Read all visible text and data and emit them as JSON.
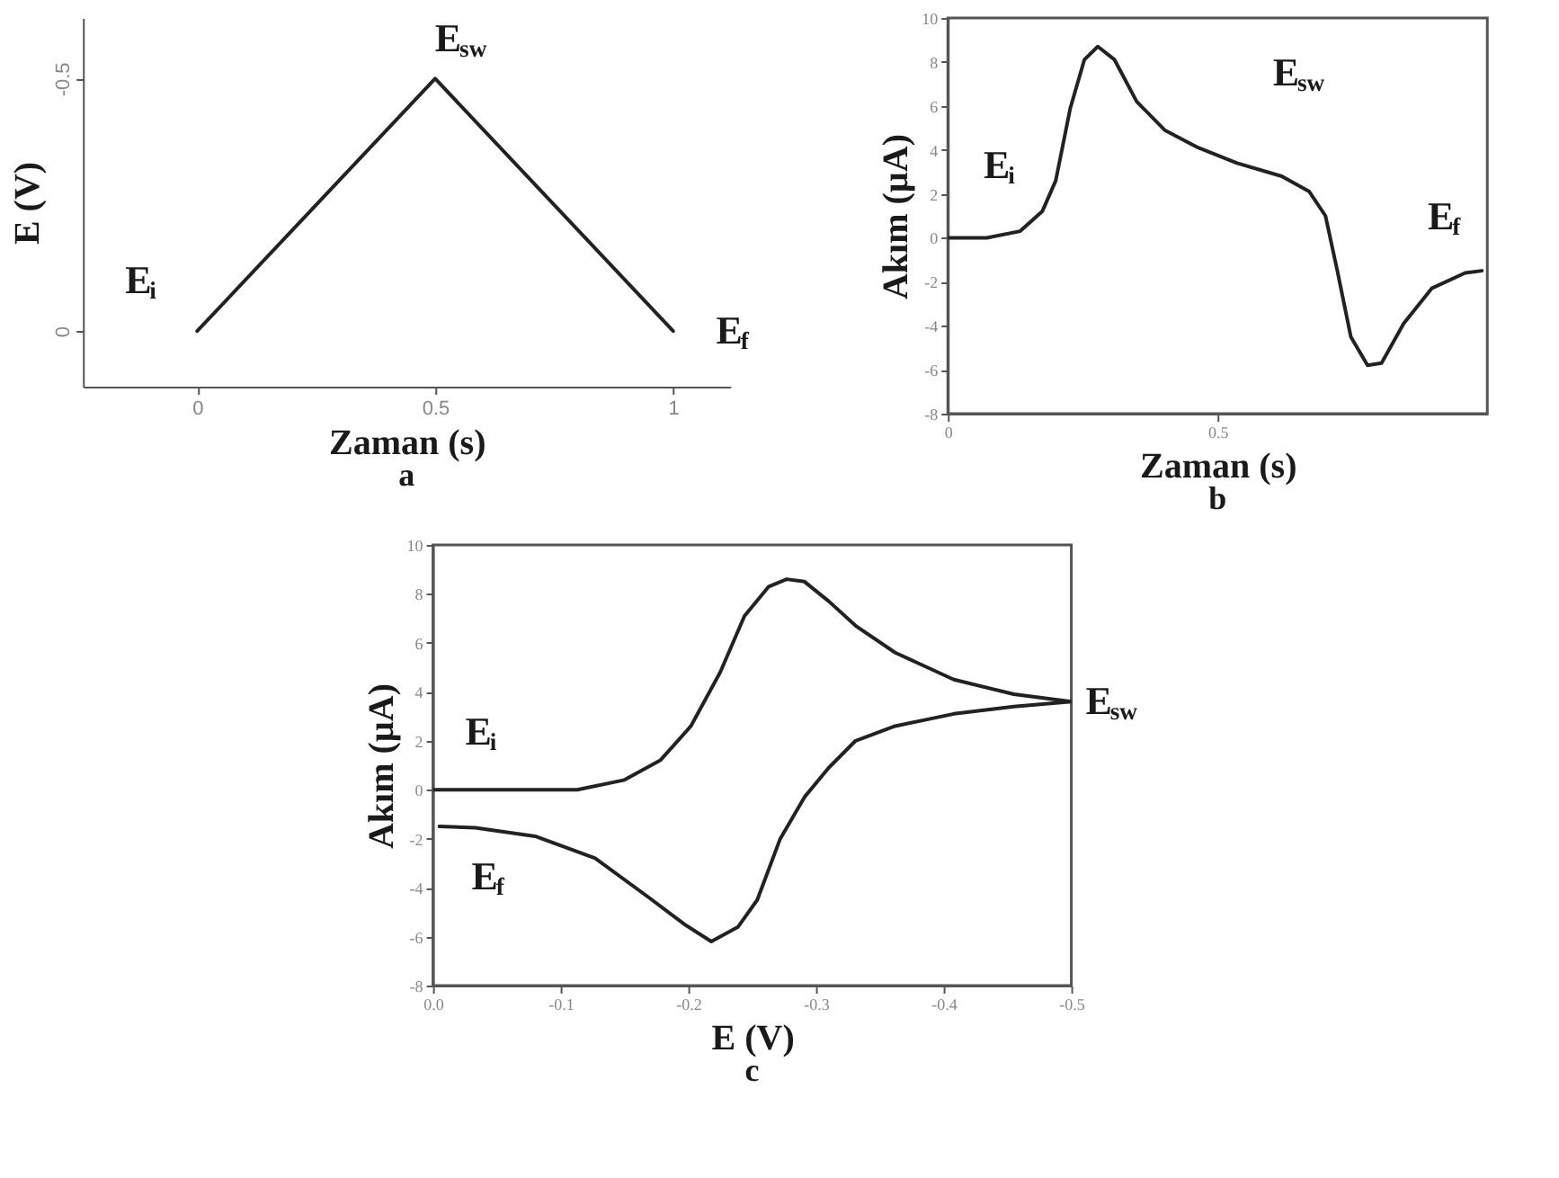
{
  "chart_data": [
    {
      "type": "line",
      "title": "a",
      "xlabel": "Zaman (s)",
      "ylabel": "E (V)",
      "xlim": [
        -0.24,
        1.12
      ],
      "ylim": [
        0.11,
        -0.62
      ],
      "xticks": [
        0,
        0.5,
        1
      ],
      "yticks": [
        0,
        -0.5
      ],
      "series": [
        {
          "color": "#222222",
          "x": [
            0,
            0.5,
            1
          ],
          "values": [
            0,
            -0.5,
            0
          ]
        }
      ],
      "annotations": [
        {
          "text": "E$_{i}$",
          "x": 0,
          "y": 0
        },
        {
          "text": "E$_{sw}$",
          "x": 0.5,
          "y": -0.5
        },
        {
          "text": "E$_{f}$",
          "x": 1,
          "y": 0
        }
      ]
    },
    {
      "type": "line",
      "title": "b",
      "xlabel": "Zaman (s)",
      "ylabel": "Akım (µA)",
      "xlim": [
        0,
        1
      ],
      "ylim": [
        -8,
        10
      ],
      "xticks": [
        0,
        0.5
      ],
      "yticks": [
        -8,
        -6,
        -4,
        -2,
        0,
        2,
        4,
        6,
        8,
        10
      ],
      "series": [
        {
          "color": "#222222",
          "x": [
            0,
            0.072,
            0.134,
            0.175,
            0.2,
            0.227,
            0.253,
            0.278,
            0.309,
            0.35,
            0.402,
            0.464,
            0.536,
            0.619,
            0.67,
            0.7,
            0.722,
            0.747,
            0.778,
            0.804,
            0.845,
            0.897,
            0.959,
            0.99
          ],
          "values": [
            0,
            0,
            0.3,
            1.2,
            2.6,
            5.9,
            8.1,
            8.7,
            8.1,
            6.2,
            4.9,
            4.1,
            3.4,
            2.8,
            2.1,
            1.0,
            -1.5,
            -4.5,
            -5.8,
            -5.7,
            -3.9,
            -2.3,
            -1.6,
            -1.5
          ]
        }
      ],
      "annotations": [
        {
          "text": "E$_{i}$",
          "x": 0,
          "y": 0
        },
        {
          "text": "E$_{sw}$",
          "x": 0.536,
          "y": 3.4
        },
        {
          "text": "E$_{f}$",
          "x": 0.99,
          "y": -1.5
        }
      ]
    },
    {
      "type": "line",
      "title": "c",
      "xlabel": "E (V)",
      "ylabel": "Akım (µA)",
      "xlim": [
        0,
        -0.5
      ],
      "ylim": [
        -8,
        10
      ],
      "xticks": [
        {
          "value": 0,
          "label": "0.0"
        },
        -0.1,
        -0.2,
        -0.3,
        -0.4,
        -0.5
      ],
      "yticks": [
        -8,
        -6,
        -4,
        -2,
        0,
        2,
        4,
        6,
        8,
        10
      ],
      "series": [
        {
          "color": "#222222",
          "x": [
            0,
            -0.113,
            -0.15,
            -0.178,
            -0.202,
            -0.225,
            -0.244,
            -0.263,
            -0.277,
            -0.291,
            -0.31,
            -0.331,
            -0.362,
            -0.408,
            -0.455,
            -0.5,
            -0.455,
            -0.408,
            -0.362,
            -0.331,
            -0.31,
            -0.291,
            -0.272,
            -0.254,
            -0.239,
            -0.218,
            -0.197,
            -0.169,
            -0.127,
            -0.08,
            -0.033,
            -0.005
          ],
          "values": [
            0,
            0,
            0.4,
            1.2,
            2.6,
            4.8,
            7.1,
            8.3,
            8.6,
            8.5,
            7.7,
            6.7,
            5.6,
            4.5,
            3.9,
            3.6,
            3.4,
            3.1,
            2.6,
            2.0,
            0.9,
            -0.3,
            -2.0,
            -4.5,
            -5.6,
            -6.2,
            -5.5,
            -4.4,
            -2.8,
            -1.9,
            -1.55,
            -1.5
          ]
        }
      ],
      "annotations": [
        {
          "text": "E$_{i}$",
          "x": 0,
          "y": 0
        },
        {
          "text": "E$_{f}$",
          "x": -0.005,
          "y": -1.5
        },
        {
          "text": "E$_{sw}$",
          "x": -0.5,
          "y": 3.6
        }
      ]
    }
  ]
}
